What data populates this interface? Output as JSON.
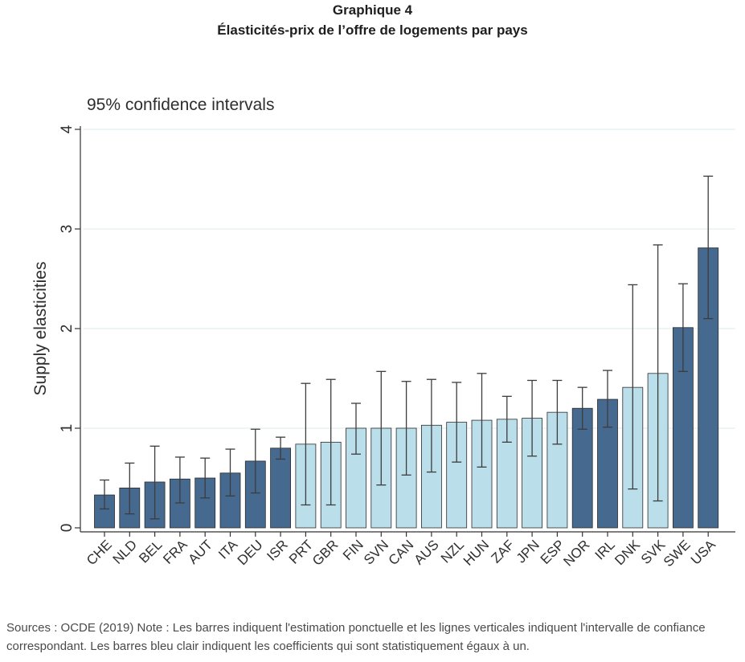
{
  "header": {
    "line1": "Graphique 4",
    "line2": "Élasticités-prix de l’offre de logements par pays"
  },
  "chart_data": {
    "type": "bar",
    "subtitle": "95% confidence intervals",
    "ylabel": "Supply elasticities",
    "xlabel": "",
    "ylim": [
      0,
      4
    ],
    "yticks": [
      "0",
      "1",
      "2",
      "3",
      "4"
    ],
    "grid": true,
    "categories": [
      "CHE",
      "NLD",
      "BEL",
      "FRA",
      "AUT",
      "ITA",
      "DEU",
      "ISR",
      "PRT",
      "GBR",
      "FIN",
      "SVN",
      "CAN",
      "AUS",
      "NZL",
      "HUN",
      "ZAF",
      "JPN",
      "ESP",
      "NOR",
      "IRL",
      "DNK",
      "SVK",
      "SWE",
      "USA"
    ],
    "values": [
      0.33,
      0.4,
      0.46,
      0.49,
      0.5,
      0.55,
      0.67,
      0.8,
      0.84,
      0.86,
      1.0,
      1.0,
      1.0,
      1.03,
      1.06,
      1.08,
      1.09,
      1.1,
      1.16,
      1.2,
      1.29,
      1.41,
      1.55,
      2.01,
      2.81
    ],
    "ci_low": [
      0.19,
      0.14,
      0.09,
      0.25,
      0.3,
      0.32,
      0.35,
      0.69,
      0.23,
      0.23,
      0.74,
      0.43,
      0.53,
      0.56,
      0.66,
      0.61,
      0.86,
      0.72,
      0.84,
      0.99,
      1.01,
      0.39,
      0.27,
      1.57,
      2.1
    ],
    "ci_high": [
      0.48,
      0.65,
      0.82,
      0.71,
      0.7,
      0.79,
      0.99,
      0.91,
      1.45,
      1.49,
      1.25,
      1.57,
      1.47,
      1.49,
      1.46,
      1.55,
      1.32,
      1.48,
      1.48,
      1.41,
      1.58,
      2.44,
      2.84,
      2.45,
      3.53
    ],
    "significant_diff_from_one": [
      true,
      true,
      true,
      true,
      true,
      true,
      true,
      true,
      false,
      false,
      false,
      false,
      false,
      false,
      false,
      false,
      false,
      false,
      false,
      true,
      true,
      false,
      false,
      true,
      true
    ],
    "colors": {
      "dark_bar": "#46698f",
      "light_bar": "#badfeb",
      "bar_edge": "#2b2b2b",
      "errorbar": "#3c3c3c",
      "grid": "#eaf1f4",
      "axis": "#333333"
    }
  },
  "footer": {
    "note": "Sources : OCDE (2019) Note : Les barres indiquent l'estimation ponctuelle et les lignes verticales indiquent l'intervalle de confiance correspondant. Les barres bleu clair indiquent les coefficients qui sont statistiquement égaux à un."
  }
}
